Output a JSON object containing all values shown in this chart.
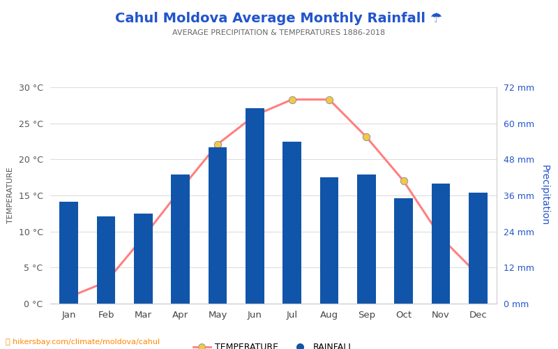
{
  "title": "Cahul Moldova Average Monthly Rainfall ☂",
  "subtitle": "AVERAGE PRECIPITATION & TEMPERATURES 1886-2018",
  "months": [
    "Jan",
    "Feb",
    "Mar",
    "Apr",
    "May",
    "Jun",
    "Jul",
    "Aug",
    "Sep",
    "Oct",
    "Nov",
    "Dec"
  ],
  "rainfall_mm": [
    34,
    29,
    30,
    43,
    52,
    65,
    54,
    42,
    43,
    35,
    40,
    37
  ],
  "temperature_c": [
    0.9,
    3.0,
    9.2,
    15.8,
    22.1,
    26.1,
    28.3,
    28.3,
    23.1,
    17.0,
    9.2,
    4.0
  ],
  "bar_color": "#1155aa",
  "line_color": "#ff8080",
  "marker_face_color": "#f5c842",
  "marker_edge_color": "#999999",
  "temp_ylim": [
    0,
    30
  ],
  "temp_yticks": [
    0,
    5,
    10,
    15,
    20,
    25,
    30
  ],
  "precip_ylim": [
    0,
    72
  ],
  "precip_yticks": [
    0,
    12,
    24,
    36,
    48,
    60,
    72
  ],
  "title_color": "#2255cc",
  "subtitle_color": "#666666",
  "left_tick_color": "#555555",
  "right_axis_color": "#2255cc",
  "watermark": "⛳ hikersbay.com/climate/moldova/cahul",
  "bg_color": "#ffffff",
  "grid_color": "#dddddd"
}
